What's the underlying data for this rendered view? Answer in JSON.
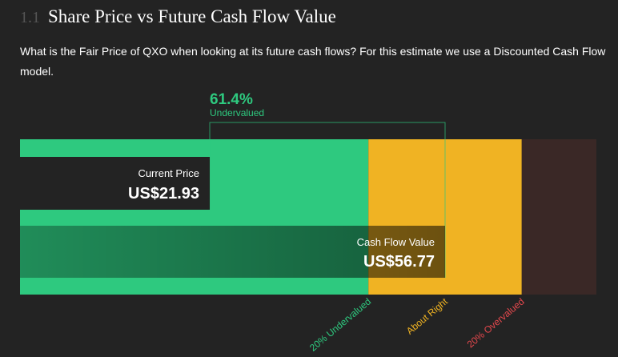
{
  "header": {
    "number": "1.1",
    "title": "Share Price vs Future Cash Flow Value"
  },
  "description": "What is the Fair Price of QXO when looking at its future cash flows? For this estimate we use a Discounted Cash Flow model.",
  "chart_data": {
    "type": "bar",
    "xlim": [
      -6.16,
      79.17
    ],
    "bars": [
      {
        "name": "Current Price",
        "value": 21.93,
        "value_label": "US$21.93"
      },
      {
        "name": "Cash Flow Value",
        "value": 56.77,
        "value_label": "US$56.77"
      }
    ],
    "difference": {
      "value": 61.4,
      "value_label": "61.4%",
      "label": "Undervalued"
    },
    "zones": [
      {
        "name": "20% Undervalued",
        "end": 45.42,
        "color": "#2ec97f",
        "label_color": "#2ec97f"
      },
      {
        "name": "About Right",
        "end": 68.12,
        "color": "#f0b323",
        "label_color": "#f0b323"
      },
      {
        "name": "20% Overvalued",
        "end": 79.17,
        "color": "#3a2826",
        "label_color": "#e5484d"
      }
    ]
  }
}
